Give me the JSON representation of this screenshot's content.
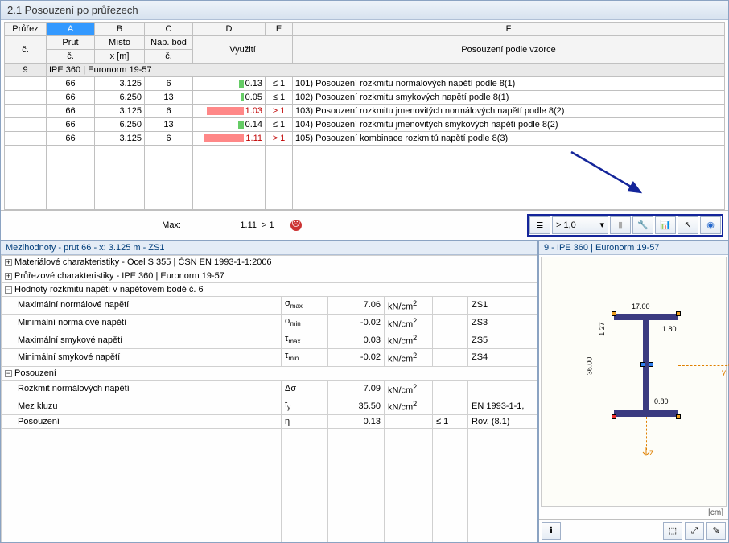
{
  "title": "2.1 Posouzení po průřezech",
  "columns": {
    "spanTop": {
      "a": "A",
      "b": "B",
      "c": "C",
      "d": "D",
      "e": "E",
      "f": "F"
    },
    "row1": {
      "prurez": "Průřez",
      "prut": "Prut",
      "misto": "Místo",
      "nap": "Nap. bod",
      "vyuziti": "",
      "f": ""
    },
    "row2": {
      "prurez": "č.",
      "prut": "č.",
      "misto": "x [m]",
      "nap": "č.",
      "vyuziti": "Využití",
      "f": "Posouzení podle vzorce"
    }
  },
  "groupRow": {
    "id": "9",
    "label": "IPE 360 | Euronorm 19-57"
  },
  "rows": [
    {
      "prut": "66",
      "x": "3.125",
      "nap": "6",
      "util": "0.13",
      "cmp": "≤ 1",
      "utilColor": "#66cc66",
      "barW": 6,
      "f": "101) Posouzení rozkmitu normálových napětí podle 8(1)"
    },
    {
      "prut": "66",
      "x": "6.250",
      "nap": "13",
      "util": "0.05",
      "cmp": "≤ 1",
      "utilColor": "#66cc66",
      "barW": 3,
      "f": "102) Posouzení rozkmitu smykových napětí podle 8(1)"
    },
    {
      "prut": "66",
      "x": "3.125",
      "nap": "6",
      "util": "1.03",
      "cmp": "> 1",
      "utilColor": "#ff8888",
      "barW": 46,
      "red": true,
      "f": "103) Posouzení rozkmitu jmenovitých normálových napětí podle 8(2)",
      "hl": true
    },
    {
      "prut": "66",
      "x": "6.250",
      "nap": "13",
      "util": "0.14",
      "cmp": "≤ 1",
      "utilColor": "#66cc66",
      "barW": 7,
      "f": "104) Posouzení rozkmitu jmenovitých smykových napětí podle 8(2)"
    },
    {
      "prut": "66",
      "x": "3.125",
      "nap": "6",
      "util": "1.11",
      "cmp": "> 1",
      "utilColor": "#ff8888",
      "barW": 50,
      "red": true,
      "f": "105) Posouzení kombinace rozkmitů napětí podle 8(3)"
    }
  ],
  "maxRow": {
    "label": "Max:",
    "value": "1.11",
    "cmp": "> 1"
  },
  "filterVal": "> 1,0",
  "leftTitle": "Mezihodnoty - prut 66 - x: 3.125 m - ZS1",
  "details": {
    "h1": "Materiálové charakteristiky - Ocel S 355 | ČSN EN 1993-1-1:2006",
    "h2": "Průřezové charakteristiky  -  IPE 360 | Euronorm 19-57",
    "h3": "Hodnoty rozkmitu napětí v napěťovém bodě č. 6",
    "r1": {
      "l": "Maximální normálové napětí",
      "s": "σ",
      "sub": "max",
      "v": "7.06",
      "u": "kN/cm",
      "sup": "2",
      "c": "ZS1"
    },
    "r2": {
      "l": "Minimální normálové napětí",
      "s": "σ",
      "sub": "min",
      "v": "-0.02",
      "u": "kN/cm",
      "sup": "2",
      "c": "ZS3"
    },
    "r3": {
      "l": "Maximální smykové napětí",
      "s": "τ",
      "sub": "max",
      "v": "0.03",
      "u": "kN/cm",
      "sup": "2",
      "c": "ZS5"
    },
    "r4": {
      "l": "Minimální smykové napětí",
      "s": "τ",
      "sub": "min",
      "v": "-0.02",
      "u": "kN/cm",
      "sup": "2",
      "c": "ZS4"
    },
    "h4": "Posouzení",
    "p1": {
      "l": "Rozkmit normálových napětí",
      "s": "Δσ",
      "v": "7.09",
      "u": "kN/cm",
      "sup": "2",
      "c": ""
    },
    "p2": {
      "l": "Mez kluzu",
      "s": "f",
      "sub": "y",
      "v": "35.50",
      "u": "kN/cm",
      "sup": "2",
      "c": "EN 1993-1-1,"
    },
    "p3": {
      "l": "Posouzení",
      "s": "η",
      "v": "0.13",
      "u": "",
      "cmp": "≤ 1",
      "c": "Rov. (8.1)"
    }
  },
  "rightTitle": "9 - IPE 360 | Euronorm 19-57",
  "dims": {
    "w": "17.00",
    "tf": "1.27",
    "tw": "0.80",
    "h": "36.00",
    "r": "1.80"
  },
  "unit": "[cm]"
}
